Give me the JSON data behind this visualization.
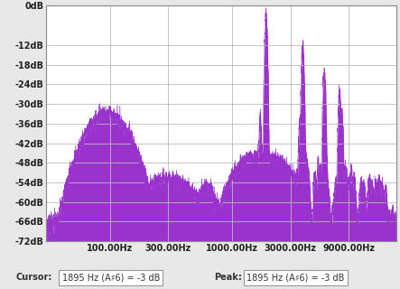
{
  "ylabel_ticks": [
    "0dB",
    "-12dB",
    "-18dB",
    "-24dB",
    "-30dB",
    "-36dB",
    "-42dB",
    "-48dB",
    "-54dB",
    "-60dB",
    "-66dB",
    "-72dB"
  ],
  "ytick_vals": [
    0,
    -12,
    -18,
    -24,
    -30,
    -36,
    -42,
    -48,
    -54,
    -60,
    -66,
    -72
  ],
  "xfreq_ticks": [
    100,
    300,
    1000,
    3000,
    9000
  ],
  "xfreq_labels": [
    "100.00Hz",
    "300.00Hz",
    "1000.00Hz",
    "3000.00Hz",
    "9000.00Hz"
  ],
  "xlim_log": [
    30,
    22000
  ],
  "ylim_min": -72,
  "ylim_max": 0,
  "fill_color": "#9933CC",
  "bg_color": "#E8E8E8",
  "plot_bg_color": "#FFFFFF",
  "grid_color": "#BBBBBB",
  "cursor_text": "1895 Hz (A♯6) = -3 dB",
  "peak_text": "1895 Hz (A♯6) = -3 dB"
}
